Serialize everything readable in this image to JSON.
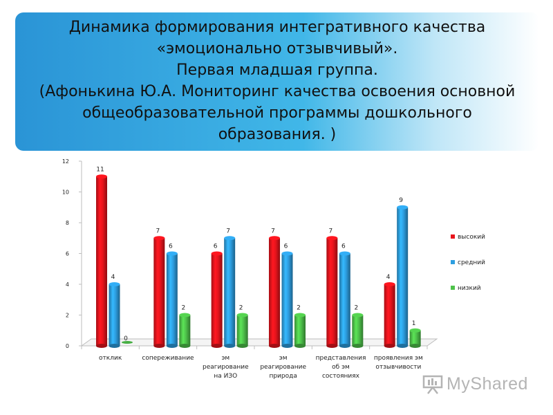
{
  "title_lines": [
    "Динамика формирования интегративного качества",
    "«эмоционально отзывчивый».",
    "Первая младшая группа.",
    "(Афонькина Ю.А. Мониторинг качества освоения основной",
    "общеобразовательной программы дошкольного",
    "образования. )"
  ],
  "watermark": "MyShared",
  "colors": {
    "high": "#e8141c",
    "mid": "#2d9ee0",
    "low": "#4ec24a"
  },
  "chart_data": {
    "type": "bar",
    "categories": [
      [
        "отклик"
      ],
      [
        "сопереживание"
      ],
      [
        "эм",
        "реагирование",
        "на ИЗО"
      ],
      [
        "эм",
        "реагирование",
        "природа"
      ],
      [
        "представления",
        "об эм",
        "состояниях"
      ],
      [
        "проявления эм",
        "отзывчивости"
      ]
    ],
    "series": [
      {
        "name": "высокий",
        "values": [
          11,
          7,
          6,
          7,
          7,
          4
        ]
      },
      {
        "name": "средний",
        "values": [
          4,
          6,
          7,
          6,
          6,
          9
        ]
      },
      {
        "name": "низкий",
        "values": [
          0,
          2,
          2,
          2,
          2,
          1
        ]
      }
    ],
    "yticks": [
      0,
      2,
      4,
      6,
      8,
      10,
      12
    ],
    "ylim": [
      0,
      12
    ],
    "legend": "right",
    "title": "",
    "xlabel": "",
    "ylabel": ""
  }
}
